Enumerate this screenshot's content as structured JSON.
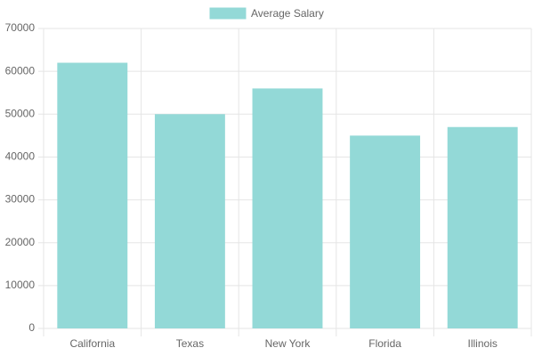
{
  "chart_data": {
    "type": "bar",
    "categories": [
      "California",
      "Texas",
      "New York",
      "Florida",
      "Illinois"
    ],
    "series": [
      {
        "name": "Average Salary",
        "color": "#93d9d7",
        "values": [
          62000,
          50000,
          56000,
          45000,
          47000
        ]
      }
    ],
    "ylim": [
      0,
      70000
    ],
    "yticks": [
      0,
      10000,
      20000,
      30000,
      40000,
      50000,
      60000,
      70000
    ],
    "grid": true,
    "legend": "top"
  }
}
